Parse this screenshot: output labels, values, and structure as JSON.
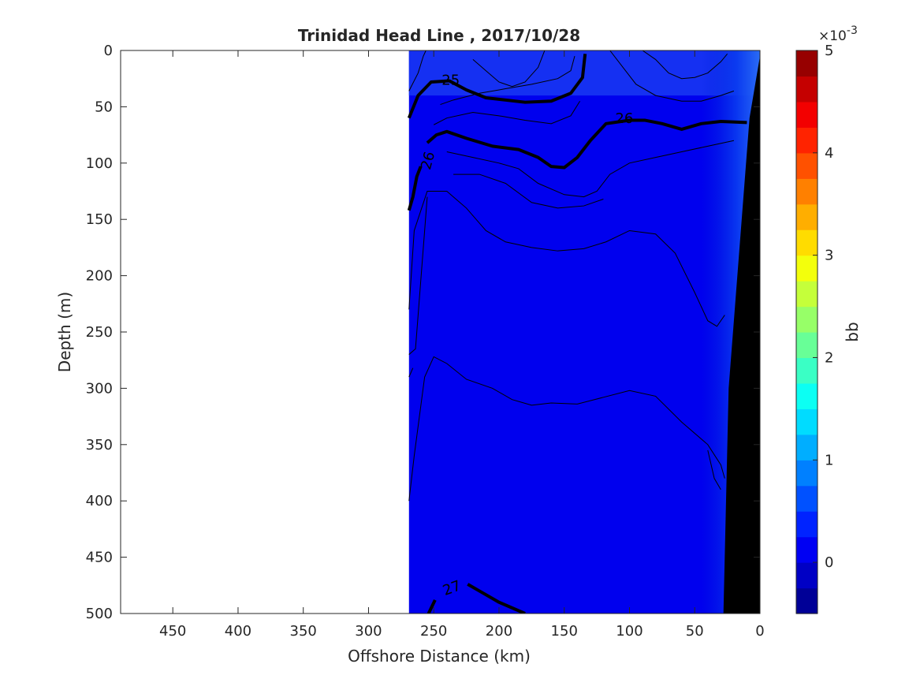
{
  "chart_data": {
    "type": "heatmap",
    "title": "Trinidad Head Line , 2017/10/28",
    "xlabel": "Offshore Distance (km)",
    "ylabel": "Depth (m)",
    "xlim": [
      490,
      0
    ],
    "ylim": [
      0,
      500
    ],
    "x_reversed": true,
    "y_reversed": true,
    "xticks": [
      450,
      400,
      350,
      300,
      250,
      200,
      150,
      100,
      50,
      0
    ],
    "yticks": [
      0,
      50,
      100,
      150,
      200,
      250,
      300,
      350,
      400,
      450,
      500
    ],
    "data_extent_x": [
      269,
      0
    ],
    "field_value_approx": 0.0005,
    "colorbar": {
      "label": "bb",
      "exponent_label": "×10",
      "exponent_power": "-3",
      "range": [
        -0.5,
        5
      ],
      "tick_values": [
        0,
        1,
        2,
        3,
        4,
        5
      ],
      "tick_labels": [
        "0",
        "1",
        "2",
        "3",
        "4",
        "5"
      ],
      "levels": 22,
      "colormap": "jet"
    },
    "contour_labels": [
      {
        "text": "25",
        "x": 237,
        "y": 27
      },
      {
        "text": "26",
        "x": 104,
        "y": 61
      },
      {
        "text": "26",
        "x": 254,
        "y": 98
      },
      {
        "text": "27",
        "x": 236,
        "y": 478
      }
    ],
    "bold_contours": [
      {
        "level": "25",
        "points": [
          [
            269,
            60
          ],
          [
            262,
            40
          ],
          [
            252,
            28
          ],
          [
            238,
            27
          ],
          [
            225,
            35
          ],
          [
            210,
            42
          ],
          [
            180,
            46
          ],
          [
            160,
            45
          ],
          [
            145,
            38
          ],
          [
            136,
            24
          ],
          [
            134,
            3
          ]
        ]
      },
      {
        "level": "26",
        "points": [
          [
            255,
            82
          ],
          [
            248,
            75
          ],
          [
            240,
            72
          ],
          [
            225,
            78
          ],
          [
            205,
            85
          ],
          [
            185,
            88
          ],
          [
            170,
            95
          ],
          [
            160,
            103
          ],
          [
            150,
            104
          ],
          [
            140,
            95
          ],
          [
            130,
            80
          ],
          [
            118,
            65
          ],
          [
            100,
            62
          ],
          [
            88,
            62
          ],
          [
            75,
            65
          ],
          [
            60,
            70
          ],
          [
            45,
            65
          ],
          [
            30,
            63
          ],
          [
            10,
            64
          ]
        ]
      },
      {
        "level": "26",
        "points": [
          [
            269,
            142
          ],
          [
            266,
            130
          ],
          [
            263,
            112
          ],
          [
            260,
            103
          ]
        ]
      },
      {
        "level": "27",
        "points": [
          [
            254,
            500
          ],
          [
            249,
            488
          ]
        ]
      },
      {
        "level": "27",
        "points": [
          [
            224,
            474
          ],
          [
            215,
            480
          ],
          [
            200,
            490
          ],
          [
            180,
            500
          ]
        ]
      }
    ],
    "thin_contours": [
      [
        [
          269,
          230
        ],
        [
          265,
          160
        ],
        [
          255,
          125
        ],
        [
          240,
          125
        ],
        [
          225,
          140
        ],
        [
          210,
          160
        ],
        [
          195,
          170
        ],
        [
          175,
          175
        ],
        [
          155,
          178
        ],
        [
          135,
          176
        ],
        [
          118,
          170
        ],
        [
          100,
          160
        ],
        [
          80,
          163
        ],
        [
          65,
          180
        ],
        [
          50,
          215
        ],
        [
          40,
          240
        ],
        [
          33,
          245
        ],
        [
          27,
          235
        ]
      ],
      [
        [
          269,
          270
        ],
        [
          264,
          265
        ],
        [
          255,
          130
        ]
      ],
      [
        [
          269,
          290
        ],
        [
          266,
          282
        ]
      ],
      [
        [
          269,
          400
        ],
        [
          265,
          360
        ],
        [
          257,
          290
        ],
        [
          250,
          272
        ],
        [
          240,
          278
        ],
        [
          225,
          292
        ],
        [
          205,
          300
        ],
        [
          190,
          310
        ],
        [
          175,
          315
        ],
        [
          160,
          313
        ],
        [
          140,
          314
        ],
        [
          120,
          308
        ],
        [
          100,
          302
        ],
        [
          80,
          307
        ],
        [
          60,
          330
        ],
        [
          40,
          350
        ],
        [
          30,
          368
        ],
        [
          27,
          380
        ]
      ],
      [
        [
          269,
          36
        ],
        [
          262,
          20
        ],
        [
          258,
          5
        ],
        [
          256,
          0
        ]
      ],
      [
        [
          250,
          66
        ],
        [
          240,
          60
        ],
        [
          220,
          55
        ],
        [
          200,
          58
        ],
        [
          180,
          62
        ],
        [
          160,
          65
        ],
        [
          145,
          58
        ],
        [
          138,
          45
        ]
      ],
      [
        [
          245,
          48
        ],
        [
          235,
          44
        ],
        [
          215,
          38
        ],
        [
          195,
          34
        ],
        [
          175,
          30
        ],
        [
          155,
          25
        ],
        [
          145,
          18
        ],
        [
          142,
          5
        ]
      ],
      [
        [
          220,
          8
        ],
        [
          210,
          18
        ],
        [
          200,
          28
        ],
        [
          190,
          32
        ],
        [
          180,
          28
        ],
        [
          170,
          15
        ],
        [
          165,
          0
        ]
      ],
      [
        [
          240,
          90
        ],
        [
          220,
          95
        ],
        [
          200,
          100
        ],
        [
          185,
          105
        ],
        [
          170,
          118
        ],
        [
          150,
          128
        ],
        [
          135,
          130
        ],
        [
          125,
          125
        ],
        [
          115,
          110
        ],
        [
          100,
          100
        ],
        [
          80,
          95
        ],
        [
          60,
          90
        ],
        [
          40,
          85
        ],
        [
          20,
          80
        ]
      ],
      [
        [
          235,
          110
        ],
        [
          215,
          110
        ],
        [
          195,
          118
        ],
        [
          175,
          135
        ],
        [
          155,
          140
        ],
        [
          135,
          138
        ],
        [
          120,
          132
        ]
      ],
      [
        [
          90,
          0
        ],
        [
          80,
          8
        ],
        [
          70,
          20
        ],
        [
          60,
          25
        ],
        [
          50,
          24
        ],
        [
          40,
          20
        ],
        [
          30,
          10
        ],
        [
          25,
          3
        ]
      ],
      [
        [
          115,
          0
        ],
        [
          105,
          15
        ],
        [
          95,
          30
        ],
        [
          80,
          40
        ],
        [
          60,
          45
        ],
        [
          45,
          45
        ],
        [
          30,
          40
        ],
        [
          20,
          36
        ]
      ],
      [
        [
          40,
          355
        ],
        [
          35,
          380
        ],
        [
          30,
          390
        ]
      ]
    ]
  }
}
